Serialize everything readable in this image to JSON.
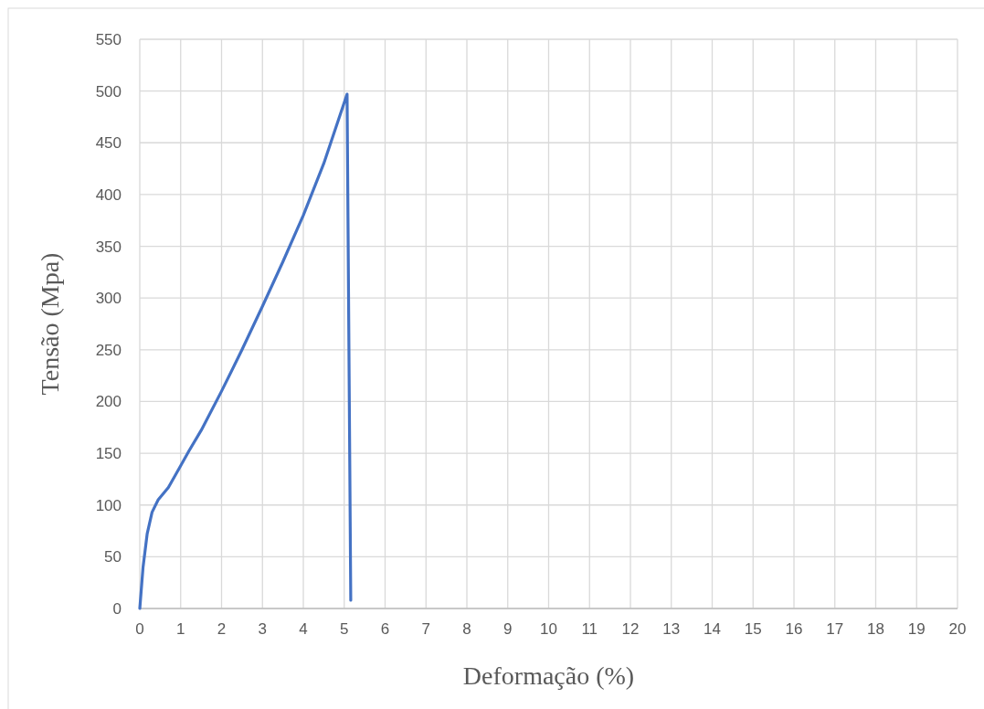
{
  "chart_data": {
    "type": "line",
    "xlabel": "Deformação (%)",
    "ylabel": "Tensão (Mpa)",
    "x": [
      0,
      0.08,
      0.18,
      0.3,
      0.45,
      0.7,
      1,
      1.2,
      1.5,
      2,
      2.5,
      3,
      3.5,
      4,
      4.5,
      5.07,
      5.16
    ],
    "series": [
      {
        "color": "#4472c4",
        "values": [
          0,
          40,
          72,
          93,
          105,
          117,
          138,
          152,
          172,
          210,
          250,
          292,
          335,
          380,
          430,
          497,
          8
        ]
      }
    ],
    "xlim": [
      0,
      20
    ],
    "xticks": [
      0,
      1,
      2,
      3,
      4,
      5,
      6,
      7,
      8,
      9,
      10,
      11,
      12,
      13,
      14,
      15,
      16,
      17,
      18,
      19,
      20
    ],
    "ylim": [
      0,
      550
    ],
    "yticks": [
      0,
      50,
      100,
      150,
      200,
      250,
      300,
      350,
      400,
      450,
      500,
      550
    ],
    "grid": true,
    "marker": "none",
    "line_style": "solid"
  }
}
